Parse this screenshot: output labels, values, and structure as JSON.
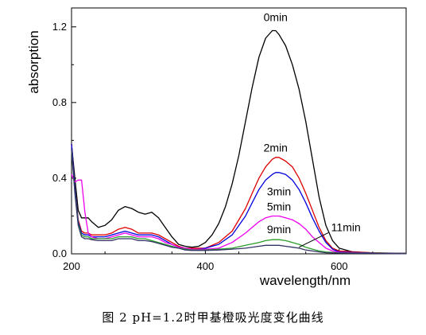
{
  "caption": "图 2   pH=1.2时甲基橙吸光度变化曲线",
  "chart_data": {
    "type": "line",
    "title": "",
    "xlabel": "wavelength/nm",
    "ylabel": "absorption",
    "xlim": [
      200,
      700
    ],
    "ylim": [
      0,
      1.3
    ],
    "x_ticks": [
      200,
      400,
      600
    ],
    "x_tick_labels": [
      "200",
      "400",
      "600"
    ],
    "y_ticks": [
      0.0,
      0.4,
      0.8,
      1.2
    ],
    "y_tick_labels": [
      "0.0",
      "0.4",
      "0.8",
      "1.2"
    ],
    "grid": false,
    "legend": "inline labels",
    "series": [
      {
        "name": "0min",
        "color": "#000000",
        "x": [
          200,
          205,
          210,
          215,
          220,
          225,
          230,
          240,
          250,
          260,
          270,
          280,
          290,
          300,
          310,
          320,
          330,
          340,
          350,
          360,
          370,
          380,
          390,
          400,
          410,
          420,
          430,
          440,
          450,
          460,
          470,
          480,
          490,
          500,
          505,
          510,
          520,
          530,
          540,
          550,
          560,
          570,
          580,
          590,
          600,
          620,
          650,
          700
        ],
        "y": [
          0.58,
          0.4,
          0.23,
          0.19,
          0.19,
          0.19,
          0.17,
          0.14,
          0.15,
          0.18,
          0.23,
          0.25,
          0.24,
          0.22,
          0.21,
          0.22,
          0.19,
          0.14,
          0.09,
          0.05,
          0.04,
          0.035,
          0.04,
          0.06,
          0.1,
          0.16,
          0.25,
          0.37,
          0.52,
          0.7,
          0.88,
          1.04,
          1.14,
          1.18,
          1.18,
          1.16,
          1.1,
          1.0,
          0.87,
          0.7,
          0.5,
          0.3,
          0.15,
          0.07,
          0.03,
          0.01,
          0.005,
          0.003
        ]
      },
      {
        "name": "2min",
        "color": "#dd0000",
        "x": [
          200,
          205,
          210,
          215,
          220,
          225,
          230,
          240,
          250,
          260,
          270,
          280,
          290,
          300,
          310,
          320,
          330,
          340,
          350,
          360,
          370,
          380,
          390,
          400,
          420,
          440,
          460,
          470,
          480,
          490,
          500,
          505,
          510,
          520,
          530,
          540,
          550,
          560,
          570,
          580,
          590,
          600,
          650,
          700
        ],
        "y": [
          0.58,
          0.35,
          0.18,
          0.12,
          0.11,
          0.11,
          0.1,
          0.1,
          0.1,
          0.11,
          0.13,
          0.14,
          0.13,
          0.11,
          0.11,
          0.11,
          0.1,
          0.08,
          0.06,
          0.04,
          0.03,
          0.03,
          0.03,
          0.03,
          0.06,
          0.12,
          0.24,
          0.32,
          0.4,
          0.46,
          0.5,
          0.51,
          0.51,
          0.49,
          0.46,
          0.4,
          0.32,
          0.23,
          0.14,
          0.07,
          0.03,
          0.015,
          0.005,
          0.002
        ]
      },
      {
        "name": "3min",
        "color": "#0000dd",
        "x": [
          200,
          205,
          210,
          215,
          220,
          225,
          230,
          240,
          250,
          260,
          270,
          280,
          290,
          300,
          310,
          320,
          330,
          340,
          350,
          360,
          370,
          380,
          390,
          400,
          420,
          440,
          460,
          470,
          480,
          490,
          500,
          505,
          510,
          520,
          530,
          540,
          550,
          560,
          570,
          580,
          590,
          600,
          650,
          700
        ],
        "y": [
          0.58,
          0.35,
          0.17,
          0.11,
          0.1,
          0.1,
          0.09,
          0.09,
          0.09,
          0.1,
          0.11,
          0.12,
          0.11,
          0.1,
          0.1,
          0.1,
          0.09,
          0.07,
          0.05,
          0.035,
          0.03,
          0.025,
          0.025,
          0.03,
          0.05,
          0.1,
          0.2,
          0.27,
          0.34,
          0.39,
          0.42,
          0.43,
          0.43,
          0.42,
          0.39,
          0.34,
          0.27,
          0.19,
          0.12,
          0.06,
          0.025,
          0.01,
          0.004,
          0.002
        ]
      },
      {
        "name": "5min",
        "color": "#ee00ee",
        "x": [
          200,
          205,
          210,
          215,
          220,
          225,
          230,
          240,
          250,
          260,
          270,
          280,
          290,
          300,
          310,
          320,
          330,
          340,
          350,
          360,
          370,
          380,
          390,
          400,
          420,
          440,
          460,
          470,
          480,
          490,
          500,
          505,
          510,
          520,
          530,
          540,
          550,
          560,
          570,
          580,
          590,
          600,
          650,
          700
        ],
        "y": [
          0.42,
          0.38,
          0.39,
          0.39,
          0.22,
          0.11,
          0.09,
          0.08,
          0.08,
          0.09,
          0.1,
          0.11,
          0.1,
          0.09,
          0.09,
          0.09,
          0.08,
          0.06,
          0.05,
          0.035,
          0.03,
          0.025,
          0.025,
          0.025,
          0.03,
          0.06,
          0.11,
          0.14,
          0.17,
          0.19,
          0.2,
          0.2,
          0.2,
          0.19,
          0.18,
          0.16,
          0.13,
          0.09,
          0.06,
          0.03,
          0.015,
          0.008,
          0.003,
          0.002
        ]
      },
      {
        "name": "9min",
        "color": "#2a9d2a",
        "x": [
          200,
          205,
          210,
          215,
          220,
          225,
          230,
          240,
          250,
          260,
          270,
          280,
          290,
          300,
          310,
          320,
          330,
          340,
          350,
          360,
          370,
          380,
          400,
          420,
          440,
          460,
          480,
          490,
          500,
          510,
          520,
          530,
          540,
          550,
          560,
          570,
          580,
          600,
          650,
          700
        ],
        "y": [
          0.55,
          0.33,
          0.16,
          0.1,
          0.09,
          0.09,
          0.08,
          0.08,
          0.08,
          0.08,
          0.09,
          0.09,
          0.09,
          0.08,
          0.08,
          0.07,
          0.06,
          0.05,
          0.04,
          0.03,
          0.025,
          0.02,
          0.02,
          0.025,
          0.03,
          0.045,
          0.06,
          0.07,
          0.075,
          0.075,
          0.07,
          0.06,
          0.05,
          0.035,
          0.025,
          0.015,
          0.01,
          0.005,
          0.003,
          0.002
        ]
      },
      {
        "name": "11min",
        "color": "#333366",
        "x": [
          200,
          205,
          210,
          215,
          220,
          225,
          230,
          240,
          250,
          260,
          270,
          280,
          290,
          300,
          310,
          320,
          330,
          340,
          350,
          360,
          370,
          380,
          400,
          420,
          440,
          460,
          480,
          490,
          500,
          510,
          520,
          530,
          540,
          550,
          560,
          570,
          580,
          600,
          650,
          700
        ],
        "y": [
          0.55,
          0.32,
          0.15,
          0.09,
          0.08,
          0.08,
          0.075,
          0.07,
          0.07,
          0.07,
          0.08,
          0.08,
          0.08,
          0.07,
          0.07,
          0.065,
          0.055,
          0.045,
          0.035,
          0.03,
          0.02,
          0.018,
          0.018,
          0.02,
          0.025,
          0.03,
          0.04,
          0.045,
          0.045,
          0.045,
          0.04,
          0.035,
          0.03,
          0.02,
          0.015,
          0.01,
          0.006,
          0.004,
          0.002,
          0.001
        ]
      }
    ],
    "annotations": [
      {
        "text": "0min",
        "series": "0min",
        "x": 505,
        "y": 1.23
      },
      {
        "text": "2min",
        "series": "2min",
        "x": 505,
        "y": 0.54
      },
      {
        "text": "3min",
        "series": "3min",
        "x": 510,
        "y": 0.31
      },
      {
        "text": "5min",
        "series": "5min",
        "x": 510,
        "y": 0.23
      },
      {
        "text": "9min",
        "series": "9min",
        "x": 510,
        "y": 0.11
      },
      {
        "text": "11min",
        "series": "11min",
        "x": 610,
        "y": 0.12
      }
    ]
  }
}
